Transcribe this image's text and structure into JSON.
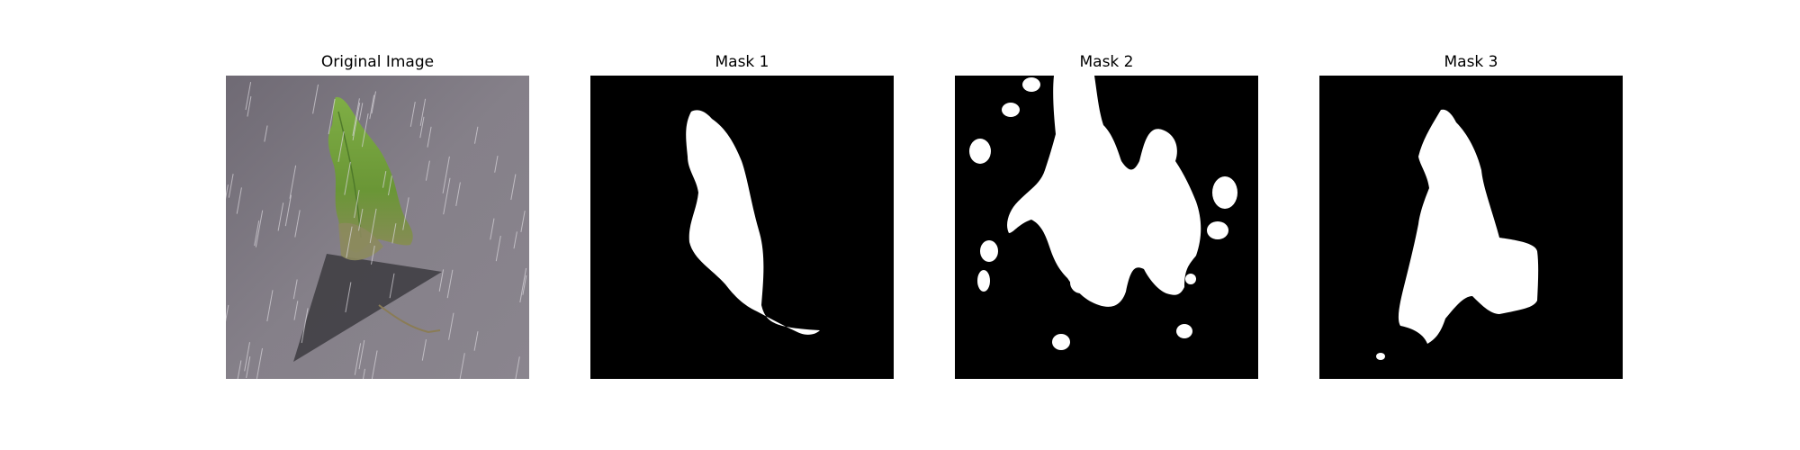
{
  "panels": [
    {
      "title": "Original Image"
    },
    {
      "title": "Mask 1"
    },
    {
      "title": "Mask 2"
    },
    {
      "title": "Mask 3"
    }
  ],
  "colors": {
    "mask_background": "#000000",
    "mask_foreground": "#ffffff",
    "photo_surface": "#7a7580",
    "leaf_green": "#6f9a3a",
    "shadow": "#3a393c"
  }
}
